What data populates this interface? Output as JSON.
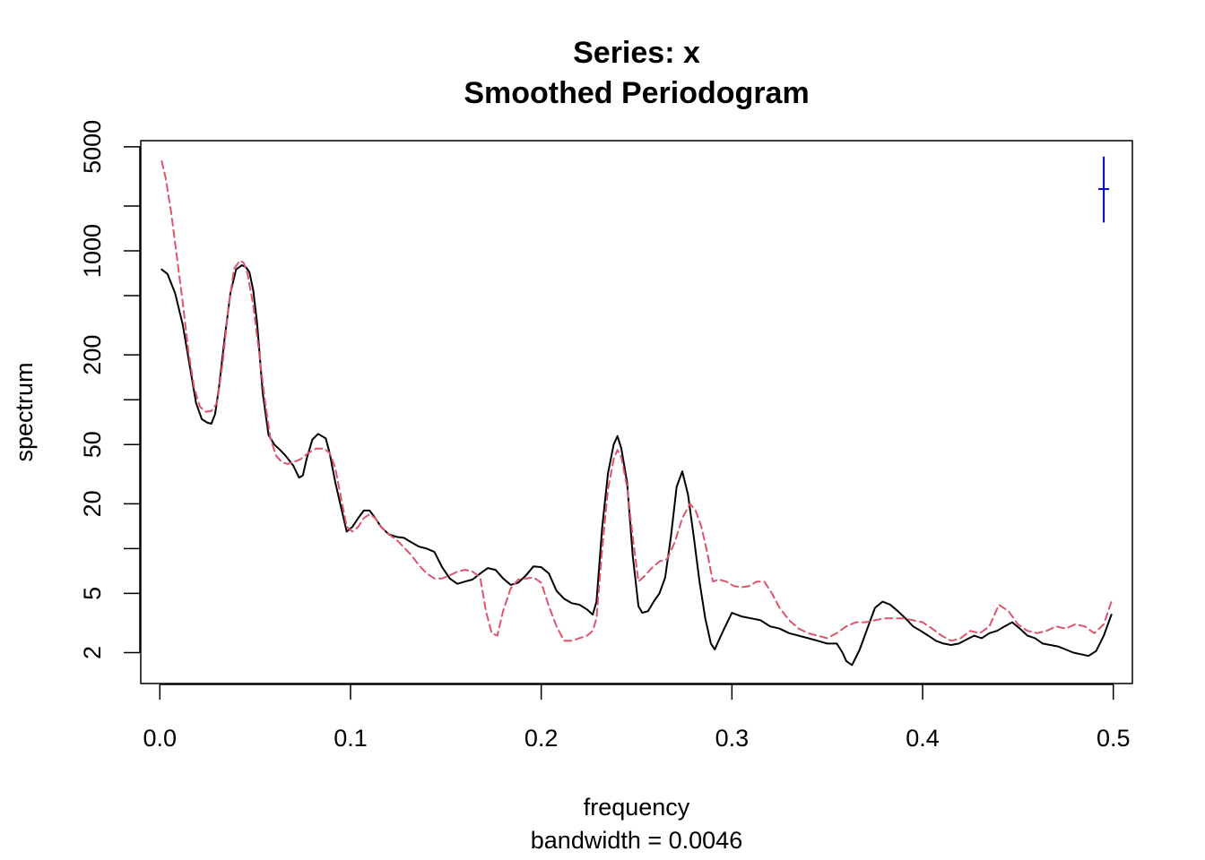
{
  "chart_data": {
    "type": "line",
    "title": "Series: x",
    "subtitle": "Smoothed Periodogram",
    "xlabel": "frequency",
    "sub_xlabel": "bandwidth = 0.0046",
    "ylabel": "spectrum",
    "xlim": [
      -0.01,
      0.51
    ],
    "ylim": [
      1.24,
      5500
    ],
    "y_scale": "log",
    "x_ticks": [
      0.0,
      0.1,
      0.2,
      0.3,
      0.4,
      0.5
    ],
    "x_tick_labels": [
      "0.0",
      "0.1",
      "0.2",
      "0.3",
      "0.4",
      "0.5"
    ],
    "y_ticks": [
      2,
      5,
      10,
      20,
      50,
      100,
      200,
      500,
      1000,
      2000,
      5000
    ],
    "y_tick_labels": [
      "2",
      "5",
      "",
      "20",
      "50",
      "",
      "200",
      "",
      "1000",
      "",
      "5000"
    ],
    "grid": false,
    "series": [
      {
        "line_style": "solid",
        "color": "#000000",
        "x": [
          0.001,
          0.004,
          0.008,
          0.012,
          0.016,
          0.019,
          0.022,
          0.025,
          0.027,
          0.029,
          0.031,
          0.034,
          0.037,
          0.04,
          0.043,
          0.045,
          0.047,
          0.049,
          0.051,
          0.054,
          0.057,
          0.06,
          0.063,
          0.066,
          0.07,
          0.073,
          0.075,
          0.077,
          0.08,
          0.083,
          0.087,
          0.089,
          0.092,
          0.095,
          0.098,
          0.101,
          0.104,
          0.107,
          0.11,
          0.113,
          0.116,
          0.12,
          0.124,
          0.128,
          0.132,
          0.136,
          0.14,
          0.144,
          0.148,
          0.152,
          0.156,
          0.16,
          0.164,
          0.168,
          0.172,
          0.176,
          0.18,
          0.184,
          0.188,
          0.192,
          0.196,
          0.2,
          0.204,
          0.208,
          0.212,
          0.216,
          0.22,
          0.224,
          0.227,
          0.229,
          0.232,
          0.235,
          0.238,
          0.24,
          0.242,
          0.245,
          0.248,
          0.251,
          0.253,
          0.256,
          0.259,
          0.262,
          0.265,
          0.268,
          0.271,
          0.274,
          0.277,
          0.28,
          0.283,
          0.286,
          0.289,
          0.291,
          0.293,
          0.296,
          0.3,
          0.305,
          0.31,
          0.315,
          0.32,
          0.325,
          0.33,
          0.335,
          0.34,
          0.345,
          0.35,
          0.355,
          0.358,
          0.36,
          0.363,
          0.367,
          0.371,
          0.375,
          0.379,
          0.383,
          0.387,
          0.391,
          0.395,
          0.399,
          0.403,
          0.407,
          0.411,
          0.415,
          0.419,
          0.423,
          0.427,
          0.431,
          0.435,
          0.439,
          0.443,
          0.447,
          0.451,
          0.455,
          0.459,
          0.463,
          0.467,
          0.471,
          0.475,
          0.479,
          0.483,
          0.487,
          0.491,
          0.495,
          0.499
        ],
        "y": [
          750,
          700,
          520,
          320,
          160,
          95,
          74,
          70,
          69,
          80,
          120,
          260,
          520,
          750,
          800,
          780,
          720,
          540,
          330,
          110,
          58,
          50,
          46,
          42,
          36,
          30,
          31,
          40,
          54,
          59,
          55,
          44,
          28,
          19,
          13,
          14,
          16,
          18,
          18,
          16,
          14,
          12.5,
          12,
          11.8,
          11,
          10.3,
          10,
          9.5,
          7.5,
          6.3,
          5.8,
          6.0,
          6.2,
          6.8,
          7.4,
          7.2,
          6.3,
          5.7,
          5.9,
          6.6,
          7.6,
          7.5,
          6.8,
          5.2,
          4.6,
          4.3,
          4.2,
          3.9,
          3.6,
          4.4,
          14,
          32,
          50,
          57,
          47,
          28,
          9,
          4.1,
          3.7,
          3.8,
          4.4,
          5.0,
          6.4,
          12,
          26,
          33,
          23,
          12,
          6,
          3.4,
          2.3,
          2.1,
          2.4,
          2.9,
          3.7,
          3.5,
          3.4,
          3.3,
          3.0,
          2.9,
          2.7,
          2.6,
          2.5,
          2.4,
          2.3,
          2.3,
          2.0,
          1.75,
          1.65,
          2.1,
          2.9,
          4.0,
          4.4,
          4.2,
          3.8,
          3.4,
          3.0,
          2.8,
          2.6,
          2.4,
          2.3,
          2.25,
          2.3,
          2.45,
          2.6,
          2.5,
          2.7,
          2.8,
          3.0,
          3.2,
          2.9,
          2.6,
          2.5,
          2.3,
          2.25,
          2.2,
          2.1,
          2.0,
          1.95,
          1.9,
          2.05,
          2.6,
          3.6
        ]
      },
      {
        "line_style": "dashed",
        "color": "#DF536B",
        "x": [
          0.001,
          0.003,
          0.006,
          0.009,
          0.012,
          0.015,
          0.018,
          0.021,
          0.024,
          0.027,
          0.03,
          0.033,
          0.036,
          0.039,
          0.042,
          0.044,
          0.046,
          0.049,
          0.052,
          0.055,
          0.058,
          0.061,
          0.064,
          0.067,
          0.07,
          0.074,
          0.078,
          0.082,
          0.086,
          0.089,
          0.092,
          0.095,
          0.098,
          0.101,
          0.104,
          0.107,
          0.11,
          0.113,
          0.116,
          0.12,
          0.124,
          0.128,
          0.132,
          0.136,
          0.14,
          0.144,
          0.148,
          0.152,
          0.156,
          0.16,
          0.164,
          0.168,
          0.171,
          0.174,
          0.177,
          0.18,
          0.184,
          0.188,
          0.192,
          0.196,
          0.2,
          0.204,
          0.208,
          0.212,
          0.216,
          0.22,
          0.224,
          0.227,
          0.229,
          0.232,
          0.235,
          0.238,
          0.24,
          0.242,
          0.245,
          0.248,
          0.251,
          0.254,
          0.258,
          0.262,
          0.266,
          0.27,
          0.274,
          0.278,
          0.281,
          0.284,
          0.287,
          0.29,
          0.293,
          0.297,
          0.301,
          0.305,
          0.309,
          0.313,
          0.317,
          0.321,
          0.325,
          0.33,
          0.335,
          0.34,
          0.345,
          0.35,
          0.355,
          0.36,
          0.365,
          0.37,
          0.375,
          0.38,
          0.385,
          0.39,
          0.395,
          0.4,
          0.405,
          0.41,
          0.415,
          0.42,
          0.425,
          0.43,
          0.435,
          0.44,
          0.445,
          0.45,
          0.455,
          0.46,
          0.465,
          0.47,
          0.475,
          0.48,
          0.485,
          0.49,
          0.495,
          0.499
        ],
        "y": [
          4000,
          3100,
          1800,
          900,
          450,
          210,
          120,
          90,
          83,
          84,
          95,
          180,
          420,
          760,
          860,
          830,
          700,
          430,
          210,
          100,
          55,
          42,
          38,
          37,
          38,
          40,
          44,
          47,
          47,
          44,
          35,
          22,
          14,
          13,
          14,
          16,
          17,
          16,
          14,
          12.5,
          11.5,
          10.2,
          9.0,
          7.7,
          6.8,
          6.3,
          6.3,
          6.6,
          7.0,
          7.2,
          7.0,
          6.4,
          3.8,
          2.7,
          2.6,
          3.8,
          5.4,
          6.2,
          6.3,
          6.4,
          5.9,
          4.1,
          3.0,
          2.4,
          2.4,
          2.5,
          2.6,
          2.8,
          3.4,
          10,
          25,
          40,
          46,
          41,
          26,
          12,
          6.0,
          6.5,
          7.4,
          8.2,
          8.5,
          11,
          16,
          20,
          18,
          14,
          9.5,
          6.0,
          6.2,
          6.0,
          5.6,
          5.5,
          5.6,
          6.0,
          6.0,
          5.0,
          4.0,
          3.3,
          2.9,
          2.7,
          2.6,
          2.5,
          2.7,
          3.0,
          3.2,
          3.2,
          3.3,
          3.4,
          3.4,
          3.4,
          3.3,
          3.2,
          2.9,
          2.6,
          2.4,
          2.5,
          2.8,
          2.7,
          3.0,
          4.2,
          3.8,
          3.1,
          2.8,
          2.7,
          2.8,
          3.0,
          2.9,
          3.1,
          3.0,
          2.7,
          3.1,
          4.4
        ]
      }
    ],
    "ci_marker": {
      "x": 0.495,
      "y": 2600,
      "lower": 1550,
      "upper": 4300,
      "color": "#0000CC"
    }
  }
}
